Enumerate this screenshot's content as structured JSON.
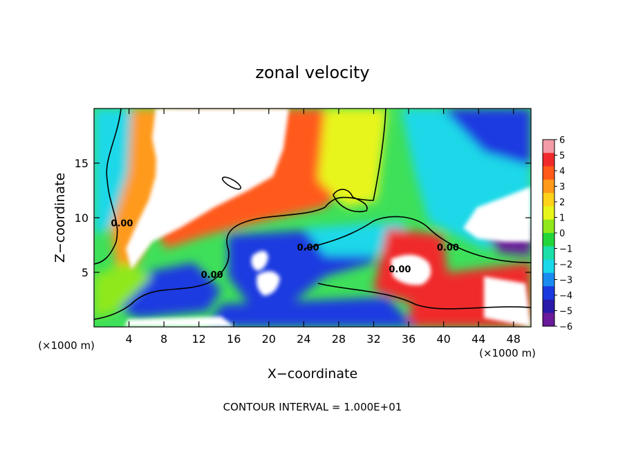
{
  "chart_data": {
    "type": "heatmap",
    "title": "zonal velocity",
    "xlabel": "X−coordinate",
    "ylabel": "Z−coordinate",
    "x_unit_label": "(×1000 m)",
    "z_unit_label": "(×1000 m)",
    "footer": "CONTOUR INTERVAL = 1.000E+01",
    "xlim": [
      0,
      50
    ],
    "zlim": [
      0,
      20
    ],
    "x_ticks": [
      4,
      8,
      12,
      16,
      20,
      24,
      28,
      32,
      36,
      40,
      44,
      48
    ],
    "z_ticks": [
      5,
      10,
      15
    ],
    "colorbar": {
      "min": -6,
      "max": 6,
      "ticks": [
        "6",
        "5",
        "4",
        "3",
        "2",
        "1",
        "0",
        "−1",
        "−2",
        "−3",
        "−4",
        "−5",
        "−6"
      ],
      "colors": [
        "#f39ba6",
        "#f02a2a",
        "#ff5a1a",
        "#ff9a1a",
        "#ffd21a",
        "#e8f51a",
        "#8ee81a",
        "#22d63a",
        "#1ae0a8",
        "#1ad8e8",
        "#1a8cf0",
        "#1a3ae0",
        "#2a1aa8",
        "#6a1a9a"
      ]
    },
    "contour_labels": [
      {
        "text": "0.00",
        "x": 3.2,
        "z": 9.2
      },
      {
        "text": "0.00",
        "x": 24.5,
        "z": 7.0
      },
      {
        "text": "0.00",
        "x": 13.5,
        "z": 4.5
      },
      {
        "text": "0.00",
        "x": 35.0,
        "z": 5.0
      },
      {
        "text": "0.00",
        "x": 40.5,
        "z": 7.0
      }
    ]
  }
}
